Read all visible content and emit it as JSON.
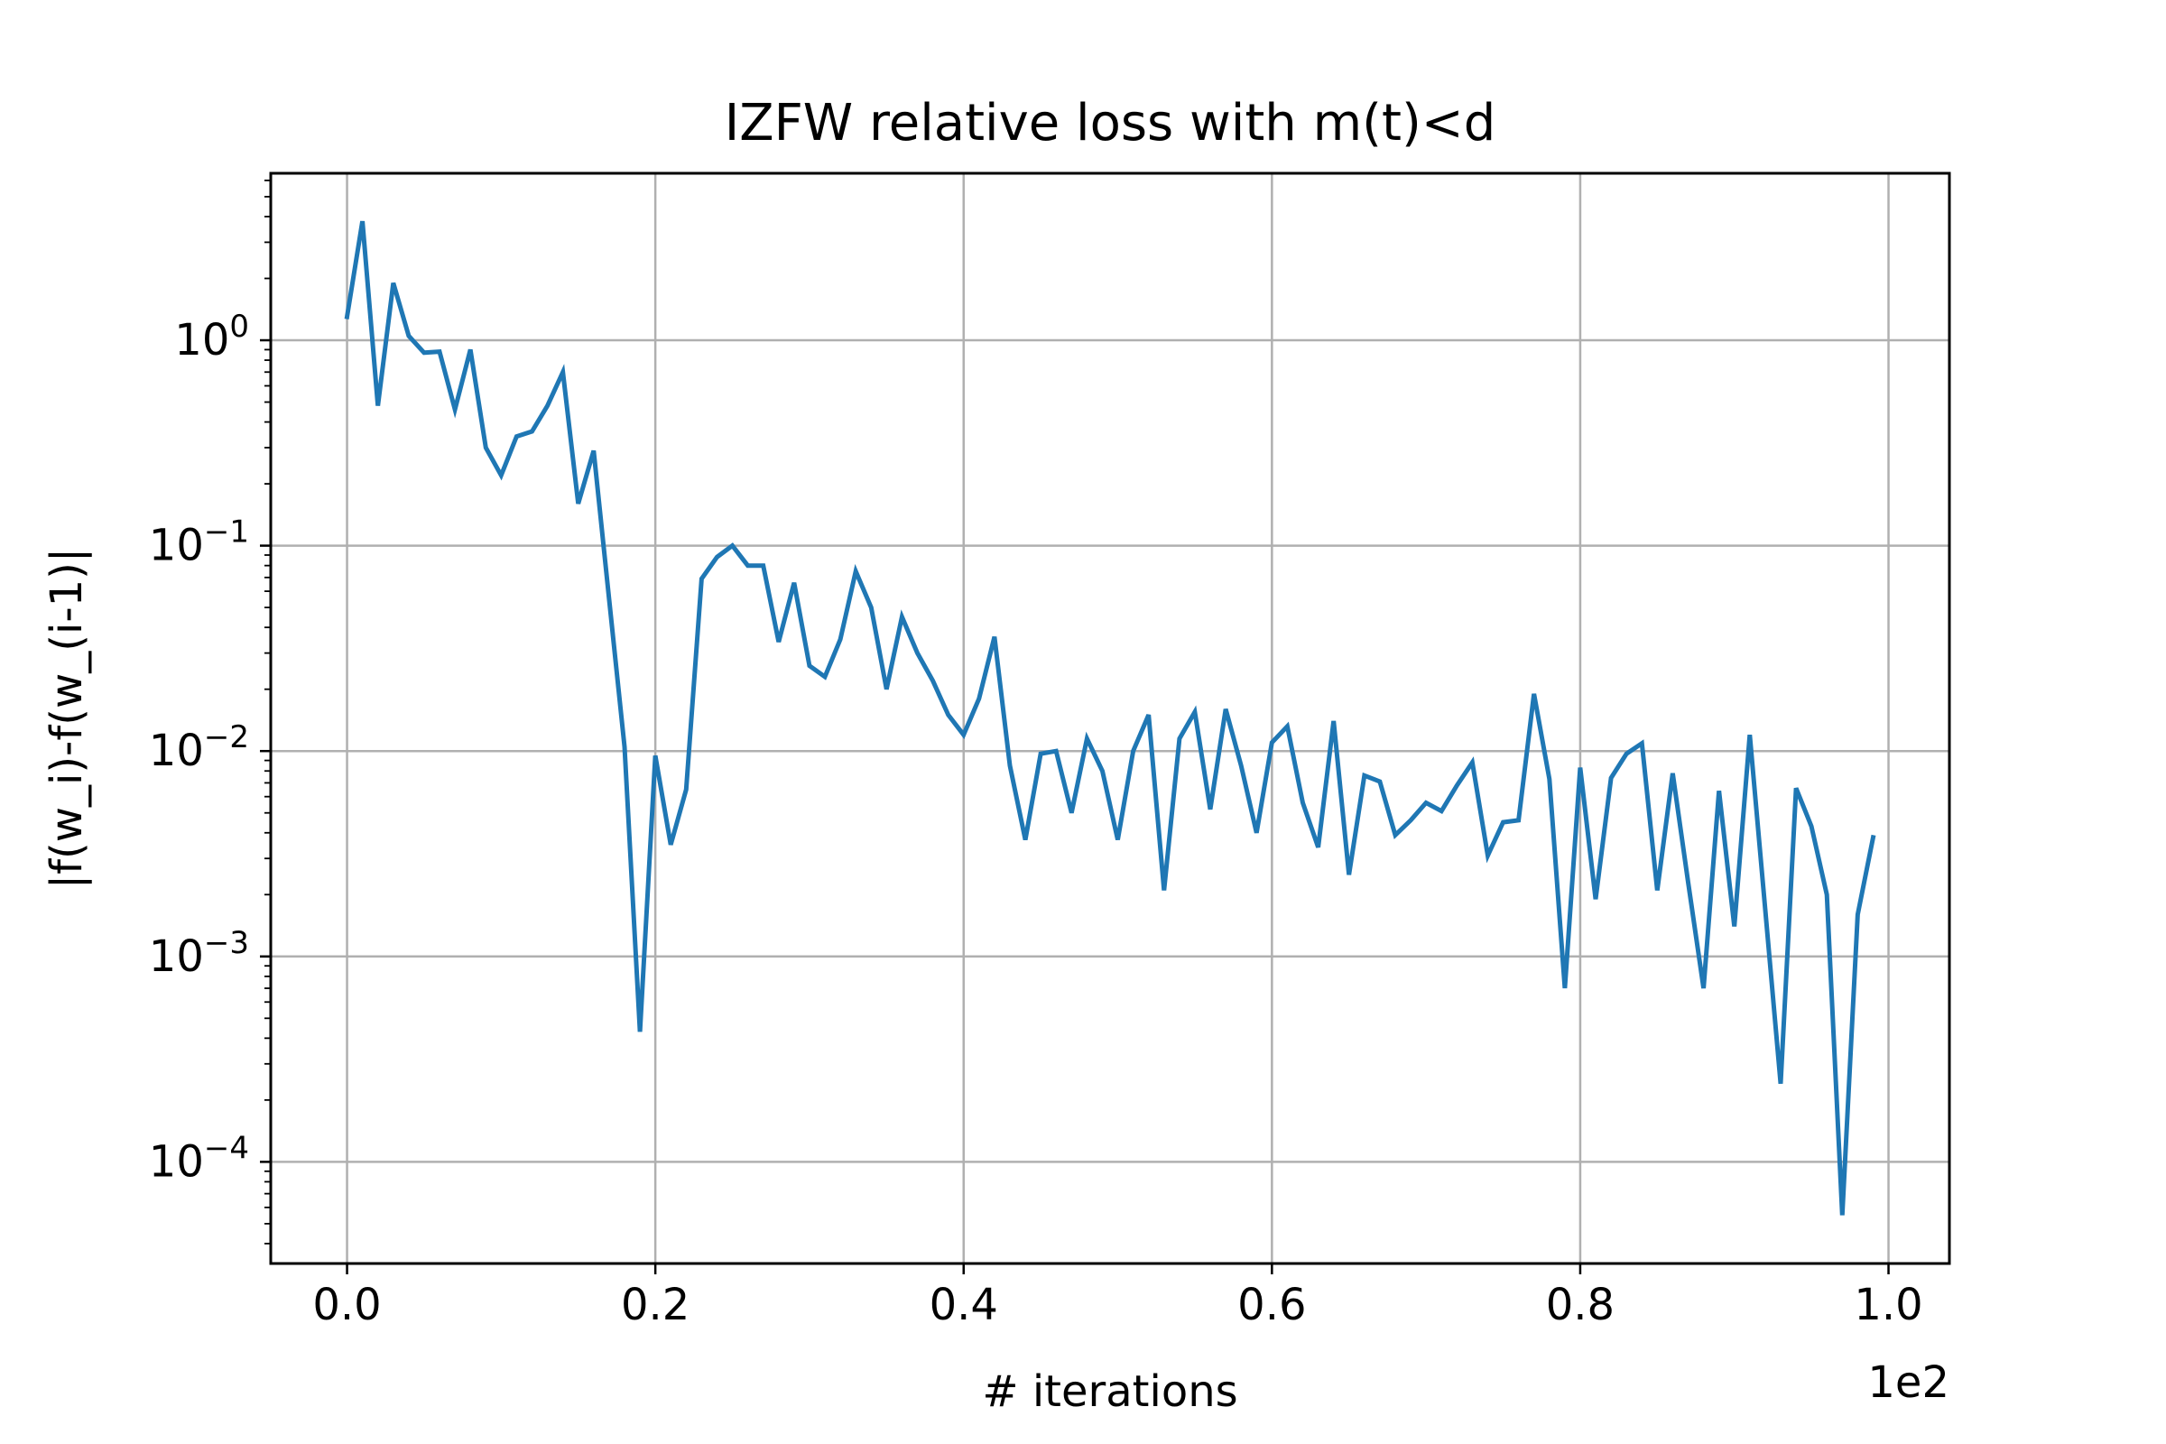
{
  "chart_data": {
    "type": "line",
    "title": "IZFW relative loss with m(t)<d",
    "xlabel": "# iterations",
    "ylabel": "|f(w_i)-f(w_(i-1)|",
    "x_offset_text": "1e2",
    "x_scale_factor": 100,
    "xlim": [
      -4.95,
      103.95
    ],
    "ylim": [
      3.2e-05,
      6.5
    ],
    "yscale": "log",
    "grid": true,
    "legend": "none",
    "x_ticks": [
      {
        "value": 0,
        "label": "0.0"
      },
      {
        "value": 20,
        "label": "0.2"
      },
      {
        "value": 40,
        "label": "0.4"
      },
      {
        "value": 60,
        "label": "0.6"
      },
      {
        "value": 80,
        "label": "0.8"
      },
      {
        "value": 100,
        "label": "1.0"
      }
    ],
    "y_ticks": [
      {
        "value": 1,
        "base": "10",
        "exp": "0"
      },
      {
        "value": 0.1,
        "base": "10",
        "exp": "−1"
      },
      {
        "value": 0.01,
        "base": "10",
        "exp": "−2"
      },
      {
        "value": 0.001,
        "base": "10",
        "exp": "−3"
      },
      {
        "value": 0.0001,
        "base": "10",
        "exp": "−4"
      }
    ],
    "series": [
      {
        "color": "#1f77b4",
        "x": [
          0,
          1,
          2,
          3,
          4,
          5,
          6,
          7,
          8,
          9,
          10,
          11,
          12,
          13,
          14,
          15,
          16,
          17,
          18,
          19,
          20,
          21,
          22,
          23,
          24,
          25,
          26,
          27,
          28,
          29,
          30,
          31,
          32,
          33,
          34,
          35,
          36,
          37,
          38,
          39,
          40,
          41,
          42,
          43,
          44,
          45,
          46,
          47,
          48,
          49,
          50,
          51,
          52,
          53,
          54,
          55,
          56,
          57,
          58,
          59,
          60,
          61,
          62,
          63,
          64,
          65,
          66,
          67,
          68,
          69,
          70,
          71,
          72,
          73,
          74,
          75,
          76,
          77,
          78,
          79,
          80,
          81,
          82,
          83,
          84,
          85,
          86,
          87,
          88,
          89,
          90,
          91,
          92,
          93,
          94,
          95,
          96,
          97,
          98,
          99
        ],
        "values": [
          1.3,
          3.8,
          0.48,
          1.9,
          1.05,
          0.87,
          0.88,
          0.46,
          0.9,
          0.3,
          0.22,
          0.34,
          0.36,
          0.48,
          0.7,
          0.16,
          0.29,
          0.055,
          0.0105,
          0.00043,
          0.0095,
          0.0035,
          0.0065,
          0.069,
          0.088,
          0.1,
          0.08,
          0.08,
          0.034,
          0.066,
          0.026,
          0.023,
          0.035,
          0.075,
          0.05,
          0.02,
          0.045,
          0.03,
          0.022,
          0.015,
          0.012,
          0.018,
          0.036,
          0.0085,
          0.0037,
          0.0097,
          0.01,
          0.005,
          0.0115,
          0.008,
          0.0037,
          0.01,
          0.015,
          0.0021,
          0.0115,
          0.0155,
          0.0052,
          0.016,
          0.0085,
          0.004,
          0.011,
          0.0132,
          0.0056,
          0.0034,
          0.014,
          0.0025,
          0.0076,
          0.0071,
          0.0039,
          0.0046,
          0.0056,
          0.0051,
          0.0068,
          0.0088,
          0.0031,
          0.0045,
          0.0046,
          0.019,
          0.0073,
          0.0007,
          0.0083,
          0.0019,
          0.0074,
          0.0097,
          0.0109,
          0.0021,
          0.0078,
          0.0023,
          0.0007,
          0.0064,
          0.0014,
          0.012,
          0.0017,
          0.00024,
          0.0066,
          0.0043,
          0.002,
          5.5e-05,
          0.0016,
          0.0038
        ]
      }
    ]
  }
}
